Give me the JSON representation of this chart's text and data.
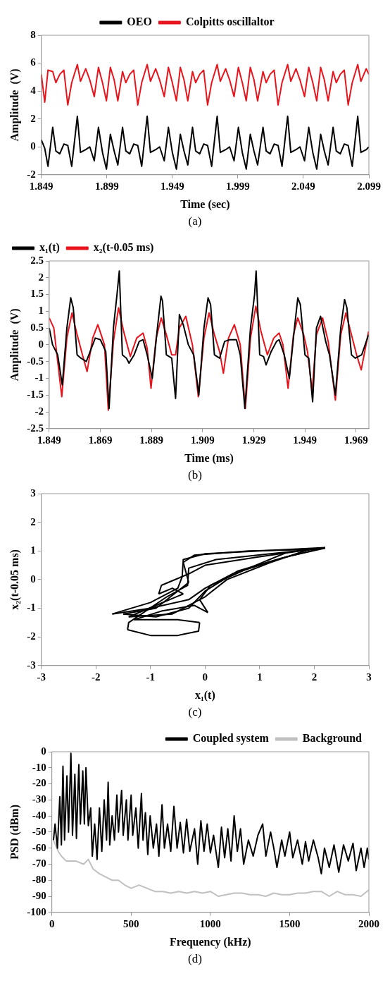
{
  "chart_data": [
    {
      "type": "line",
      "xlabel": "Time (sec)",
      "ylabel": "Amplitude  (V)",
      "xlim": [
        1.849,
        2.099
      ],
      "ylim": [
        -2,
        8
      ],
      "xticks": [
        1.849,
        1.899,
        1.949,
        1.999,
        2.049,
        2.099
      ],
      "yticks": [
        -2,
        0,
        2,
        4,
        6,
        8
      ],
      "legend": "top",
      "grid": false,
      "annotations": [
        "(a)"
      ],
      "x": [
        1.849,
        1.8516,
        1.8541,
        1.8577,
        1.8601,
        1.8631,
        1.8662,
        1.8692,
        1.8722,
        1.8765,
        1.8789,
        1.8829,
        1.886,
        1.8894,
        1.8926,
        1.8957,
        1.8987,
        1.9017,
        1.9046,
        1.9074,
        1.911,
        1.9135,
        1.9165,
        1.9195,
        1.9226,
        1.9256,
        1.9298,
        1.9323,
        1.9363,
        1.9393,
        1.9428,
        1.946,
        1.949,
        1.9521,
        1.9551,
        1.9579,
        1.9608,
        1.9644,
        1.9668,
        1.9699,
        1.9729,
        1.9759,
        1.979,
        1.9832,
        1.9856,
        1.9897,
        1.9927,
        1.9961,
        1.9994,
        2.0024,
        2.0054,
        2.0085,
        2.0113,
        2.0141,
        2.0182,
        2.0206,
        2.0236,
        2.0267,
        2.0297,
        2.0327,
        2.037,
        2.0394,
        2.0434,
        2.0464,
        2.0499,
        2.0531,
        2.0562,
        2.0592,
        2.0622,
        2.065,
        2.0679,
        2.0717,
        2.0741,
        2.0772,
        2.0802,
        2.0832,
        2.0863,
        2.0905,
        2.0929,
        2.097,
        2.099
      ],
      "series": [
        {
          "name": "OEO",
          "color": "#000000",
          "values": [
            0.5,
            -0.1,
            -1.4,
            1.4,
            -0.3,
            -0.5,
            0.2,
            0.1,
            -1.4,
            2.2,
            -0.4,
            -0.2,
            0.0,
            -1.0,
            1.4,
            -0.4,
            -1.6,
            0.9,
            -0.3,
            -1.3,
            1.4,
            -0.3,
            -0.5,
            0.2,
            0.1,
            -1.4,
            2.2,
            -0.4,
            -0.2,
            0.0,
            -1.0,
            1.4,
            -0.4,
            -1.6,
            0.9,
            -0.3,
            -1.3,
            1.4,
            -0.3,
            -0.5,
            0.2,
            0.1,
            -1.4,
            2.2,
            -0.4,
            -0.2,
            0.0,
            -1.0,
            1.4,
            -0.4,
            -1.6,
            0.9,
            -0.3,
            -1.3,
            1.4,
            -0.3,
            -0.5,
            0.2,
            0.1,
            -1.4,
            2.2,
            -0.4,
            -0.2,
            0.0,
            -1.0,
            1.4,
            -0.4,
            -1.6,
            0.9,
            -0.3,
            -1.3,
            1.4,
            -0.3,
            -0.5,
            0.2,
            0.1,
            -1.4,
            2.2,
            -0.4,
            -0.2,
            0.0
          ]
        },
        {
          "name": "Colpitts oscillaltor",
          "color": "#e8141c",
          "values": [
            5.2,
            3.2,
            5.5,
            5.4,
            4.6,
            5.2,
            5.5,
            3.0,
            4.6,
            5.9,
            4.7,
            5.6,
            4.8,
            3.6,
            5.7,
            4.6,
            3.3,
            5.7,
            4.8,
            3.3,
            5.4,
            4.6,
            5.2,
            5.5,
            3.0,
            4.6,
            5.9,
            4.7,
            5.6,
            4.8,
            3.6,
            5.7,
            4.6,
            3.3,
            5.7,
            4.8,
            3.3,
            5.4,
            4.6,
            5.2,
            5.5,
            3.0,
            4.6,
            5.9,
            4.7,
            5.6,
            4.8,
            3.6,
            5.7,
            4.6,
            3.3,
            5.7,
            4.8,
            3.3,
            5.4,
            4.6,
            5.2,
            5.5,
            3.0,
            4.6,
            5.9,
            4.7,
            5.6,
            4.8,
            3.6,
            5.7,
            4.6,
            3.3,
            5.7,
            4.8,
            3.3,
            5.4,
            4.6,
            5.2,
            5.5,
            3.0,
            4.6,
            5.9,
            4.7,
            5.6,
            5.2
          ]
        }
      ]
    },
    {
      "type": "line",
      "xlabel": "Time (ms)",
      "ylabel": "Amplitude  (V)",
      "xlim": [
        1.849,
        1.974
      ],
      "ylim": [
        -2.5,
        2.5
      ],
      "xticks": [
        1.849,
        1.869,
        1.889,
        1.909,
        1.929,
        1.949,
        1.969
      ],
      "yticks": [
        -2.5,
        -2,
        -1.5,
        -1,
        -0.5,
        0,
        0.5,
        1,
        1.5,
        2,
        2.5
      ],
      "legend": "top left",
      "grid": false,
      "annotations": [
        "(b)"
      ],
      "series": [
        {
          "name": "x₁(t)",
          "color": "#000000",
          "x": [
            1.849,
            1.8503,
            1.8523,
            1.8541,
            1.8559,
            1.8574,
            1.8584,
            1.8599,
            1.8614,
            1.8635,
            1.8655,
            1.867,
            1.869,
            1.8711,
            1.8724,
            1.8741,
            1.8755,
            1.8764,
            1.8776,
            1.8792,
            1.8802,
            1.8822,
            1.8842,
            1.8857,
            1.8873,
            1.8893,
            1.8913,
            1.8927,
            1.8933,
            1.8948,
            1.8969,
            1.8984,
            1.8999,
            1.9014,
            1.9034,
            1.9055,
            1.9075,
            1.9095,
            1.9111,
            1.9121,
            1.9136,
            1.9156,
            1.9176,
            1.9196,
            1.9222,
            1.9237,
            1.9255,
            1.9277,
            1.9293,
            1.9299,
            1.9313,
            1.9328,
            1.9338,
            1.9358,
            1.9379,
            1.9389,
            1.9409,
            1.9429,
            1.9449,
            1.9462,
            1.9472,
            1.949,
            1.9505,
            1.952,
            1.9535,
            1.9551,
            1.9571,
            1.9586,
            1.9609,
            1.963,
            1.9645,
            1.9654,
            1.9672,
            1.9687,
            1.9712,
            1.9739
          ],
          "values": [
            0.5,
            0.0,
            -0.3,
            -1.2,
            0.5,
            1.4,
            1.1,
            -0.3,
            -0.4,
            -0.5,
            -0.1,
            0.2,
            0.15,
            -0.2,
            -1.9,
            0.5,
            1.5,
            2.2,
            -0.3,
            -0.4,
            -0.55,
            -0.3,
            0.1,
            0.15,
            -0.3,
            -1.0,
            0.5,
            1.45,
            1.3,
            -0.3,
            -0.4,
            -1.6,
            0.9,
            0.6,
            0.0,
            -0.3,
            -1.5,
            0.5,
            1.4,
            1.2,
            -0.3,
            -0.4,
            0.1,
            0.15,
            0.15,
            -0.3,
            -1.9,
            0.5,
            1.5,
            2.2,
            -0.3,
            -0.35,
            -0.6,
            -0.2,
            0.1,
            0.15,
            -0.3,
            -1.0,
            0.5,
            1.4,
            1.2,
            -0.3,
            -0.4,
            -1.7,
            0.5,
            0.85,
            0.1,
            -0.3,
            -1.5,
            0.5,
            1.35,
            1.1,
            -0.3,
            -0.4,
            -0.3,
            0.3
          ]
        },
        {
          "name": "x₂(t-0.05 ms)",
          "color": "#e8141c",
          "x": [
            1.849,
            1.8508,
            1.8523,
            1.8539,
            1.8559,
            1.8579,
            1.8599,
            1.862,
            1.8638,
            1.866,
            1.868,
            1.8706,
            1.8721,
            1.8741,
            1.8761,
            1.8781,
            1.8807,
            1.8832,
            1.8857,
            1.8873,
            1.8888,
            1.8908,
            1.8928,
            1.8948,
            1.8969,
            1.8984,
            1.8999,
            1.9024,
            1.905,
            1.9073,
            1.9095,
            1.9115,
            1.9136,
            1.9156,
            1.9171,
            1.9191,
            1.9214,
            1.9237,
            1.9257,
            1.9277,
            1.9298,
            1.9318,
            1.9343,
            1.9368,
            1.9389,
            1.9404,
            1.9424,
            1.9445,
            1.9462,
            1.9485,
            1.95,
            1.9518,
            1.9535,
            1.9559,
            1.9581,
            1.9609,
            1.963,
            1.965,
            1.9672,
            1.9692,
            1.971,
            1.9739
          ],
          "values": [
            0.8,
            0.5,
            -0.5,
            -1.55,
            0.2,
            0.95,
            0.3,
            -0.3,
            -0.8,
            0.2,
            0.6,
            0.0,
            -1.95,
            0.1,
            1.1,
            0.4,
            -0.35,
            0.2,
            0.35,
            -0.1,
            -1.3,
            0.2,
            0.8,
            0.3,
            -0.3,
            -0.3,
            0.5,
            0.85,
            0.0,
            -1.55,
            0.2,
            0.95,
            0.3,
            -0.2,
            -0.85,
            0.2,
            0.6,
            0.0,
            -1.9,
            0.2,
            1.15,
            0.4,
            -0.3,
            0.2,
            0.35,
            0.0,
            -1.3,
            0.3,
            0.8,
            0.3,
            -0.2,
            -1.4,
            0.3,
            0.8,
            0.1,
            -1.65,
            0.3,
            0.95,
            0.3,
            -0.3,
            -0.75,
            0.4
          ]
        }
      ]
    },
    {
      "type": "line",
      "xlabel": "x₁(t)",
      "ylabel": "x₂(t-0.05 ms)",
      "xlim": [
        -3,
        3
      ],
      "ylim": [
        -3,
        3
      ],
      "xticks": [
        -3,
        -2,
        -1,
        0,
        1,
        2,
        3
      ],
      "yticks": [
        -3,
        -2,
        -1,
        0,
        1,
        2,
        3
      ],
      "legend": false,
      "grid": false,
      "annotations": [
        "(c)"
      ],
      "series": [
        {
          "color": "#000000",
          "x": [
            2.2,
            1.0,
            0.0,
            -0.4,
            -0.42,
            -0.5,
            -1.0,
            -1.7
          ],
          "values": [
            1.12,
            1.0,
            0.9,
            0.7,
            0.1,
            -0.3,
            -0.8,
            -1.2
          ]
        },
        {
          "color": "#000000",
          "x": [
            -1.7,
            -1.0,
            -0.3,
            0.0,
            0.5,
            1.5,
            2.2
          ],
          "values": [
            -1.2,
            -1.0,
            -0.7,
            -0.3,
            0.2,
            0.8,
            1.1
          ]
        },
        {
          "color": "#000000",
          "x": [
            2.2,
            1.2,
            0.2,
            -0.3,
            -0.32,
            -0.7,
            -1.4,
            -1.42
          ],
          "values": [
            1.1,
            0.9,
            0.7,
            0.4,
            -0.2,
            -0.6,
            -1.5,
            -1.75
          ]
        },
        {
          "color": "#000000",
          "x": [
            -1.42,
            -1.0,
            -0.5,
            -0.12,
            -0.1
          ],
          "values": [
            -1.75,
            -1.95,
            -1.95,
            -1.8,
            -1.5
          ]
        },
        {
          "color": "#000000",
          "x": [
            -0.1,
            -0.5,
            -1.3
          ],
          "values": [
            -1.5,
            -1.4,
            -1.4
          ]
        },
        {
          "color": "#000000",
          "x": [
            -1.3,
            -0.8,
            -0.2,
            0.05
          ],
          "values": [
            -1.4,
            -1.1,
            -0.9,
            -1.15
          ]
        },
        {
          "color": "#000000",
          "x": [
            0.05,
            -0.1
          ],
          "values": [
            -1.15,
            -0.7
          ]
        },
        {
          "color": "#000000",
          "x": [
            -0.1,
            0.1,
            0.8,
            1.5,
            2.1
          ],
          "values": [
            -0.7,
            -0.2,
            0.4,
            0.95,
            1.1
          ]
        },
        {
          "color": "#000000",
          "x": [
            2.1,
            1.0,
            0.0,
            -0.3,
            -0.8,
            -0.85
          ],
          "values": [
            1.1,
            0.8,
            0.5,
            0.2,
            -0.2,
            -0.5
          ]
        },
        {
          "color": "#000000",
          "x": [
            -0.85,
            -0.6,
            -0.4
          ],
          "values": [
            -0.5,
            -0.3,
            -0.5
          ]
        },
        {
          "color": "#000000",
          "x": [
            -0.4,
            -0.9,
            -1.4
          ],
          "values": [
            -0.5,
            -0.9,
            -1.3
          ]
        },
        {
          "color": "#000000",
          "x": [
            -1.4,
            -0.6,
            0.0,
            0.4,
            1.2,
            1.9
          ],
          "values": [
            -1.3,
            -1.2,
            -0.6,
            0.0,
            0.6,
            1.05
          ]
        },
        {
          "color": "#000000",
          "x": [
            1.9,
            0.8,
            -0.2,
            -0.4
          ],
          "values": [
            1.05,
            1.0,
            0.85,
            0.6
          ]
        },
        {
          "color": "#000000",
          "x": [
            -0.4,
            -0.3
          ],
          "values": [
            0.6,
            -0.1
          ]
        },
        {
          "color": "#000000",
          "x": [
            -0.3,
            -0.9,
            -1.5
          ],
          "values": [
            -0.1,
            -1.0,
            -1.2
          ]
        },
        {
          "color": "#000000",
          "x": [
            -1.5,
            -0.9,
            -0.3,
            0.0,
            0.6,
            1.4,
            2.2
          ],
          "values": [
            -1.2,
            -1.3,
            -1.0,
            -0.4,
            0.3,
            0.75,
            1.12
          ]
        }
      ]
    },
    {
      "type": "line",
      "xlabel": "Frequency (kHz)",
      "ylabel": "PSD (dBm)",
      "xlim": [
        0,
        2000
      ],
      "ylim": [
        -100,
        0
      ],
      "xticks": [
        0,
        500,
        1000,
        1500,
        2000
      ],
      "yticks": [
        -100,
        -90,
        -80,
        -70,
        -60,
        -50,
        -40,
        -30,
        -20,
        -10,
        0
      ],
      "legend": "top right",
      "grid": false,
      "annotations": [
        "(d)"
      ],
      "series": [
        {
          "name": "Coupled system",
          "color": "#000000",
          "x": [
            10,
            20,
            35,
            50,
            60,
            70,
            80,
            95,
            105,
            120,
            130,
            145,
            155,
            170,
            180,
            195,
            205,
            215,
            230,
            245,
            255,
            270,
            285,
            300,
            315,
            330,
            345,
            355,
            365,
            380,
            395,
            410,
            420,
            440,
            450,
            470,
            480,
            500,
            510,
            530,
            545,
            565,
            575,
            590,
            605,
            620,
            640,
            660,
            675,
            695,
            710,
            730,
            750,
            770,
            790,
            810,
            830,
            850,
            870,
            900,
            920,
            940,
            960,
            980,
            1000,
            1020,
            1050,
            1070,
            1090,
            1110,
            1130,
            1150,
            1170,
            1190,
            1210,
            1240,
            1270,
            1300,
            1330,
            1350,
            1380,
            1400,
            1420,
            1450,
            1470,
            1500,
            1520,
            1550,
            1580,
            1600,
            1620,
            1650,
            1680,
            1700,
            1720,
            1750,
            1780,
            1810,
            1840,
            1870,
            1900,
            1920,
            1950,
            1970,
            1990,
            2000
          ],
          "values": [
            -55,
            -45,
            -60,
            -28,
            -58,
            -9,
            -55,
            -15,
            -50,
            -1,
            -52,
            -14,
            -54,
            -8,
            -45,
            -12,
            -45,
            -10,
            -46,
            -35,
            -65,
            -45,
            -67,
            -35,
            -62,
            -30,
            -55,
            -19,
            -58,
            -40,
            -55,
            -27,
            -50,
            -24,
            -52,
            -30,
            -55,
            -27,
            -52,
            -35,
            -60,
            -26,
            -55,
            -38,
            -64,
            -40,
            -60,
            -45,
            -65,
            -33,
            -60,
            -45,
            -62,
            -34,
            -60,
            -44,
            -63,
            -42,
            -62,
            -48,
            -70,
            -43,
            -62,
            -45,
            -63,
            -52,
            -72,
            -47,
            -66,
            -48,
            -68,
            -40,
            -62,
            -48,
            -70,
            -55,
            -65,
            -52,
            -45,
            -65,
            -50,
            -60,
            -72,
            -55,
            -65,
            -50,
            -66,
            -55,
            -70,
            -56,
            -68,
            -55,
            -66,
            -76,
            -60,
            -72,
            -58,
            -75,
            -58,
            -68,
            -57,
            -74,
            -60,
            -72,
            -60,
            -67
          ]
        },
        {
          "name": "Background",
          "color": "#c0c0c0",
          "x": [
            10,
            40,
            60,
            90,
            150,
            200,
            230,
            260,
            300,
            340,
            380,
            420,
            460,
            500,
            550,
            600,
            650,
            700,
            750,
            800,
            850,
            900,
            950,
            1000,
            1050,
            1100,
            1150,
            1200,
            1250,
            1300,
            1350,
            1400,
            1450,
            1500,
            1550,
            1600,
            1650,
            1700,
            1750,
            1800,
            1850,
            1900,
            1950,
            2000
          ],
          "values": [
            -55,
            -62,
            -65,
            -68,
            -68,
            -70,
            -67,
            -73,
            -76,
            -78,
            -80,
            -80,
            -83,
            -85,
            -83,
            -85,
            -87,
            -87,
            -88,
            -87,
            -88,
            -87,
            -88,
            -87,
            -90,
            -89,
            -88,
            -88,
            -89,
            -89,
            -90,
            -88,
            -89,
            -89,
            -88,
            -88,
            -87,
            -87,
            -90,
            -87,
            -89,
            -89,
            -90,
            -86
          ]
        }
      ]
    }
  ]
}
